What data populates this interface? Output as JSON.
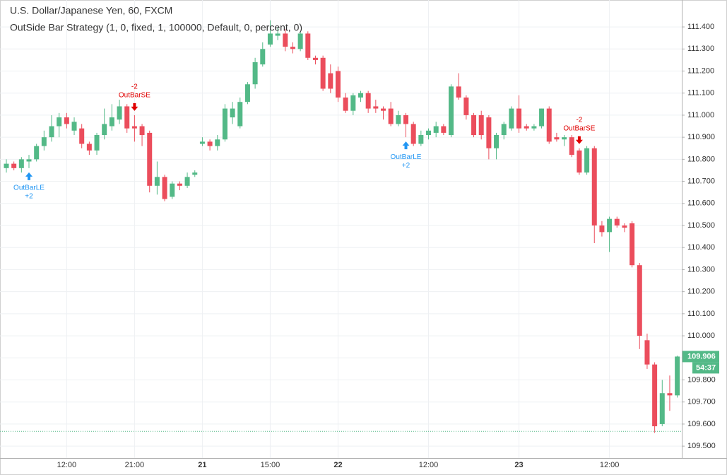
{
  "chart_data": {
    "type": "candlestick",
    "title": "U.S. Dollar/Japanese Yen, 60, FXCM",
    "subtitle": "OutSide Bar Strategy (1, 0, fixed, 1, 100000, Default, 0, percent, 0)",
    "up_color": "#53b987",
    "down_color": "#eb4d5c",
    "categories": [
      null,
      null,
      null,
      null,
      null,
      null,
      null,
      null,
      "12:00",
      null,
      null,
      null,
      null,
      null,
      null,
      null,
      null,
      "21:00",
      null,
      null,
      null,
      null,
      null,
      null,
      null,
      null,
      "21",
      null,
      null,
      null,
      null,
      null,
      null,
      null,
      null,
      "15:00",
      null,
      null,
      null,
      null,
      null,
      null,
      null,
      null,
      "22",
      null,
      null,
      null,
      null,
      null,
      null,
      null,
      null,
      null,
      null,
      null,
      "12:00",
      null,
      null,
      null,
      null,
      null,
      null,
      null,
      null,
      null,
      null,
      null,
      "23",
      null,
      null,
      null,
      null,
      null,
      null,
      null,
      null,
      null,
      null,
      null,
      "12:00",
      null,
      null,
      null,
      null,
      null,
      null,
      null,
      null,
      null
    ],
    "open": [
      110.76,
      110.78,
      110.76,
      110.79,
      110.8,
      110.86,
      110.9,
      110.95,
      110.99,
      110.93,
      110.94,
      110.87,
      110.84,
      110.91,
      110.95,
      110.98,
      111.04,
      110.95,
      110.95,
      110.92,
      110.68,
      110.72,
      110.63,
      110.69,
      110.68,
      110.73,
      110.87,
      110.88,
      110.86,
      110.89,
      110.99,
      110.95,
      111.06,
      111.14,
      111.23,
      111.32,
      111.36,
      111.37,
      111.31,
      111.3,
      111.37,
      111.26,
      111.26,
      111.19,
      111.2,
      111.08,
      111.02,
      111.08,
      111.1,
      111.04,
      111.03,
      111.03,
      110.96,
      111.0,
      110.96,
      110.87,
      110.91,
      110.92,
      110.95,
      110.91,
      111.13,
      111.08,
      111.0,
      111.0,
      110.99,
      110.85,
      110.91,
      110.94,
      111.03,
      110.95,
      110.94,
      110.95,
      111.03,
      110.9,
      110.89,
      110.9,
      110.84,
      110.74,
      110.85,
      110.5,
      110.47,
      110.53,
      110.5,
      110.51,
      110.32,
      109.98,
      109.87,
      109.6,
      109.74,
      109.73
    ],
    "high": [
      110.8,
      110.79,
      110.81,
      110.82,
      110.87,
      110.93,
      111.0,
      111.01,
      111.01,
      110.99,
      110.96,
      110.88,
      110.92,
      111.03,
      111.05,
      111.07,
      111.05,
      111.0,
      110.96,
      110.93,
      110.79,
      110.73,
      110.7,
      110.7,
      110.74,
      110.75,
      110.9,
      110.89,
      110.91,
      111.05,
      111.06,
      111.08,
      111.15,
      111.26,
      111.33,
      111.43,
      111.4,
      111.39,
      111.33,
      111.38,
      111.38,
      111.27,
      111.27,
      111.23,
      111.22,
      111.1,
      111.1,
      111.11,
      111.11,
      111.07,
      111.04,
      111.06,
      111.02,
      111.01,
      110.97,
      110.93,
      110.94,
      110.97,
      110.96,
      111.14,
      111.19,
      111.09,
      111.01,
      111.02,
      111.0,
      110.92,
      110.97,
      111.04,
      111.09,
      110.96,
      110.96,
      111.03,
      111.04,
      110.92,
      110.91,
      110.91,
      110.85,
      110.86,
      110.86,
      110.52,
      110.54,
      110.54,
      110.51,
      110.52,
      110.33,
      110.01,
      109.88,
      109.8,
      109.82,
      109.91
    ],
    "low": [
      110.74,
      110.75,
      110.74,
      110.76,
      110.79,
      110.84,
      110.88,
      110.9,
      110.94,
      110.91,
      110.85,
      110.82,
      110.82,
      110.89,
      110.93,
      110.96,
      110.92,
      110.88,
      110.86,
      110.65,
      110.64,
      110.61,
      110.62,
      110.66,
      110.67,
      110.72,
      110.86,
      110.84,
      110.84,
      110.88,
      110.96,
      110.94,
      111.05,
      111.12,
      111.22,
      111.31,
      111.34,
      111.29,
      111.28,
      111.29,
      111.25,
      111.23,
      111.11,
      111.1,
      111.06,
      111.01,
      111.0,
      111.06,
      111.01,
      111.01,
      110.98,
      110.95,
      110.95,
      110.9,
      110.86,
      110.86,
      110.89,
      110.9,
      110.91,
      110.9,
      111.07,
      110.98,
      110.9,
      110.89,
      110.8,
      110.8,
      110.89,
      110.93,
      110.92,
      110.93,
      110.93,
      110.94,
      110.87,
      110.88,
      110.86,
      110.81,
      110.73,
      110.73,
      110.42,
      110.45,
      110.38,
      110.49,
      110.47,
      110.31,
      109.94,
      109.85,
      109.56,
      109.59,
      109.66,
      109.72
    ],
    "close": [
      110.78,
      110.76,
      110.8,
      110.8,
      110.86,
      110.9,
      110.95,
      110.99,
      110.96,
      110.97,
      110.87,
      110.84,
      110.91,
      110.96,
      110.99,
      111.04,
      110.94,
      110.94,
      110.91,
      110.68,
      110.72,
      110.62,
      110.69,
      110.68,
      110.72,
      110.74,
      110.88,
      110.86,
      110.89,
      111.03,
      111.03,
      111.06,
      111.14,
      111.24,
      111.3,
      111.37,
      111.37,
      111.31,
      111.3,
      111.37,
      111.26,
      111.25,
      111.12,
      111.12,
      111.08,
      111.02,
      111.09,
      111.1,
      111.03,
      111.03,
      111.02,
      110.96,
      111.0,
      110.96,
      110.87,
      110.91,
      110.93,
      110.95,
      110.92,
      111.13,
      111.08,
      111.0,
      110.91,
      110.91,
      110.85,
      110.91,
      110.96,
      111.03,
      110.94,
      110.94,
      110.95,
      111.03,
      110.88,
      110.89,
      110.9,
      110.82,
      110.74,
      110.85,
      110.5,
      110.47,
      110.53,
      110.5,
      110.49,
      110.32,
      110.0,
      109.87,
      109.59,
      109.74,
      109.73,
      109.906
    ],
    "ylim": [
      109.446,
      111.522
    ],
    "yticks": [
      {
        "value": 109.5,
        "label": "109.500"
      },
      {
        "value": 109.6,
        "label": "109.600"
      },
      {
        "value": 109.7,
        "label": "109.700"
      },
      {
        "value": 109.8,
        "label": "109.800"
      },
      {
        "value": 109.9,
        "label": "109.900"
      },
      {
        "value": 110.0,
        "label": "110.000"
      },
      {
        "value": 110.1,
        "label": "110.100"
      },
      {
        "value": 110.2,
        "label": "110.200"
      },
      {
        "value": 110.3,
        "label": "110.300"
      },
      {
        "value": 110.4,
        "label": "110.400"
      },
      {
        "value": 110.5,
        "label": "110.500"
      },
      {
        "value": 110.6,
        "label": "110.600"
      },
      {
        "value": 110.7,
        "label": "110.700"
      },
      {
        "value": 110.8,
        "label": "110.800"
      },
      {
        "value": 110.9,
        "label": "110.900"
      },
      {
        "value": 111.0,
        "label": "111.000"
      },
      {
        "value": 111.1,
        "label": "111.100"
      },
      {
        "value": 111.2,
        "label": "111.200"
      },
      {
        "value": 111.3,
        "label": "111.300"
      },
      {
        "value": 111.4,
        "label": "111.400"
      }
    ],
    "grid": true,
    "countdown": "54:37",
    "position_line": 109.567,
    "signals": [
      {
        "bar": 3,
        "position": "below",
        "label": "OutBarLE",
        "qty": "+2",
        "color": "#2196f3"
      },
      {
        "bar": 17,
        "position": "above",
        "label": "OutBarSE",
        "qty": "-2",
        "color": "#e00000"
      },
      {
        "bar": 53,
        "position": "below",
        "label": "OutBarLE",
        "qty": "+2",
        "color": "#2196f3"
      },
      {
        "bar": 76,
        "position": "above",
        "label": "OutBarSE",
        "qty": "-2",
        "color": "#e00000"
      }
    ]
  }
}
